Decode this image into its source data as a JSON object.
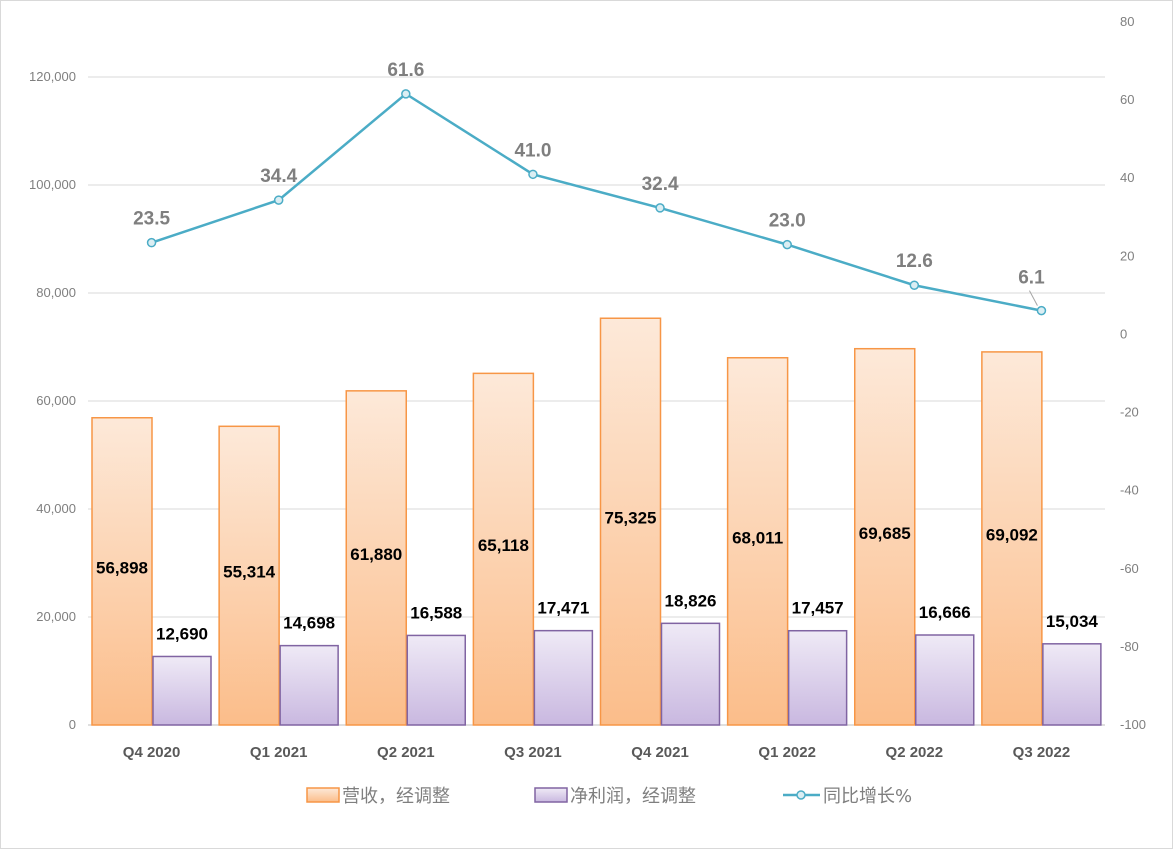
{
  "chart_data": {
    "type": "bar+line",
    "categories": [
      "Q4 2020",
      "Q1 2021",
      "Q2 2021",
      "Q3 2021",
      "Q4 2021",
      "Q1 2022",
      "Q2 2022",
      "Q3 2022"
    ],
    "series": [
      {
        "name": "营收，经调整",
        "type": "bar",
        "axis": "left",
        "values": [
          56898,
          55314,
          61880,
          65118,
          75325,
          68011,
          69685,
          69092
        ],
        "labels": [
          "56,898",
          "55,314",
          "61,880",
          "65,118",
          "75,325",
          "68,011",
          "69,685",
          "69,092"
        ],
        "color": "#f79646"
      },
      {
        "name": "净利润，经调整",
        "type": "bar",
        "axis": "left",
        "values": [
          12690,
          14698,
          16588,
          17471,
          18826,
          17457,
          16666,
          15034
        ],
        "labels": [
          "12,690",
          "14,698",
          "16,588",
          "17,471",
          "18,826",
          "17,457",
          "16,666",
          "15,034"
        ],
        "color": "#8064a2"
      },
      {
        "name": "同比增长%",
        "type": "line",
        "axis": "right",
        "values": [
          23.5,
          34.4,
          61.6,
          41.0,
          32.4,
          23.0,
          12.6,
          6.1
        ],
        "labels": [
          "23.5",
          "34.4",
          "61.6",
          "41.0",
          "32.4",
          "23.0",
          "12.6",
          "6.1"
        ],
        "color": "#4bacc6"
      }
    ],
    "left_axis": {
      "range": [
        0,
        120000
      ],
      "ticks": [
        "0",
        "20,000",
        "40,000",
        "60,000",
        "80,000",
        "100,000",
        "120,000"
      ]
    },
    "right_axis": {
      "range": [
        -100,
        80
      ],
      "ticks": [
        "-100",
        "-80",
        "-60",
        "-40",
        "-20",
        "0",
        "20",
        "40",
        "60",
        "80"
      ]
    },
    "grid": true,
    "legend_position": "bottom"
  }
}
